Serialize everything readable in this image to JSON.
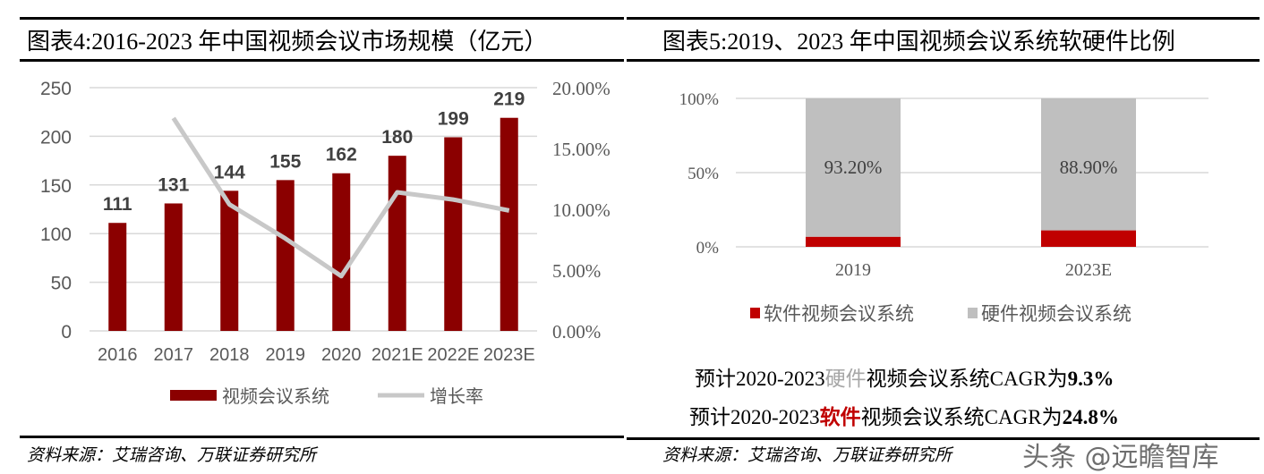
{
  "charts_titles": {
    "left": "图表4:2016-2023 年中国视频会议市场规模（亿元）",
    "right": "图表5:2019、2023 年中国视频会议系统软硬件比例"
  },
  "sources": {
    "left": "资料来源：艾瑞咨询、万联证券研究所",
    "right": "资料来源：艾瑞咨询、万联证券研究所"
  },
  "notes": {
    "line1_prefix": "预计2020-2023",
    "line1_highlight": "硬件",
    "line1_middle": "视频会议系统CAGR为",
    "line1_value": "9.3%",
    "line2_prefix": "预计2020-2023",
    "line2_highlight": "软件",
    "line2_middle": "视频会议系统CAGR为",
    "line2_value": "24.8%"
  },
  "watermark": "头条 @远瞻智库",
  "colors": {
    "bar": "#8B0000",
    "line": "#C8C8C8",
    "software": "#C00000",
    "hardware": "#BFBFBF",
    "hardware_text": "#A6A6A6"
  },
  "chart_data": [
    {
      "type": "bar+line",
      "categories": [
        "2016",
        "2017",
        "2018",
        "2019",
        "2020",
        "2021E",
        "2022E",
        "2023E"
      ],
      "series": [
        {
          "name": "视频会议系统",
          "type": "bar",
          "axis": "left",
          "values": [
            111,
            131,
            144,
            155,
            162,
            180,
            199,
            219
          ],
          "data_labels": [
            "111",
            "131",
            "144",
            "155",
            "162",
            "180",
            "199",
            "219"
          ]
        },
        {
          "name": "增长率",
          "type": "line",
          "axis": "right",
          "values": [
            null,
            17.5,
            10.4,
            7.6,
            4.5,
            11.4,
            10.8,
            9.9
          ]
        }
      ],
      "ylim": [
        0,
        250
      ],
      "yticks": [
        "0",
        "50",
        "100",
        "150",
        "200",
        "250"
      ],
      "y2lim": [
        0,
        20
      ],
      "y2ticks": [
        "0.00%",
        "5.00%",
        "10.00%",
        "15.00%",
        "20.00%"
      ],
      "grid": true,
      "legend": "bottom"
    },
    {
      "type": "stacked-bar",
      "categories": [
        "2019",
        "2023E"
      ],
      "series": [
        {
          "name": "软件视频会议系统",
          "values": [
            6.8,
            11.1
          ]
        },
        {
          "name": "硬件视频会议系统",
          "values": [
            93.2,
            88.9
          ],
          "data_labels": [
            "93.20%",
            "88.90%"
          ]
        }
      ],
      "ylim": [
        0,
        100
      ],
      "yticks": [
        "0%",
        "50%",
        "100%"
      ],
      "grid": true,
      "legend": "bottom"
    }
  ]
}
